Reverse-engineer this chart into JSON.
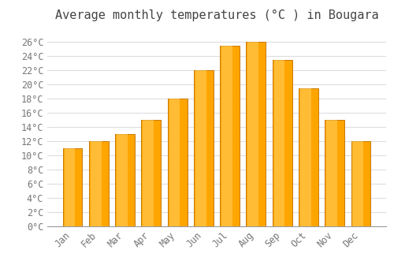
{
  "title": "Average monthly temperatures (°C ) in Bougara",
  "months": [
    "Jan",
    "Feb",
    "Mar",
    "Apr",
    "May",
    "Jun",
    "Jul",
    "Aug",
    "Sep",
    "Oct",
    "Nov",
    "Dec"
  ],
  "values": [
    11,
    12,
    13,
    15,
    18,
    22,
    25.5,
    26,
    23.5,
    19.5,
    15,
    12
  ],
  "bar_color": "#FFA500",
  "bar_edge_color": "#C87800",
  "background_color": "#FFFFFF",
  "grid_color": "#DDDDDD",
  "ylim_max": 28,
  "ytick_step": 2,
  "title_fontsize": 11,
  "tick_fontsize": 8.5,
  "title_color": "#444444",
  "tick_color": "#777777",
  "bar_width": 0.75
}
